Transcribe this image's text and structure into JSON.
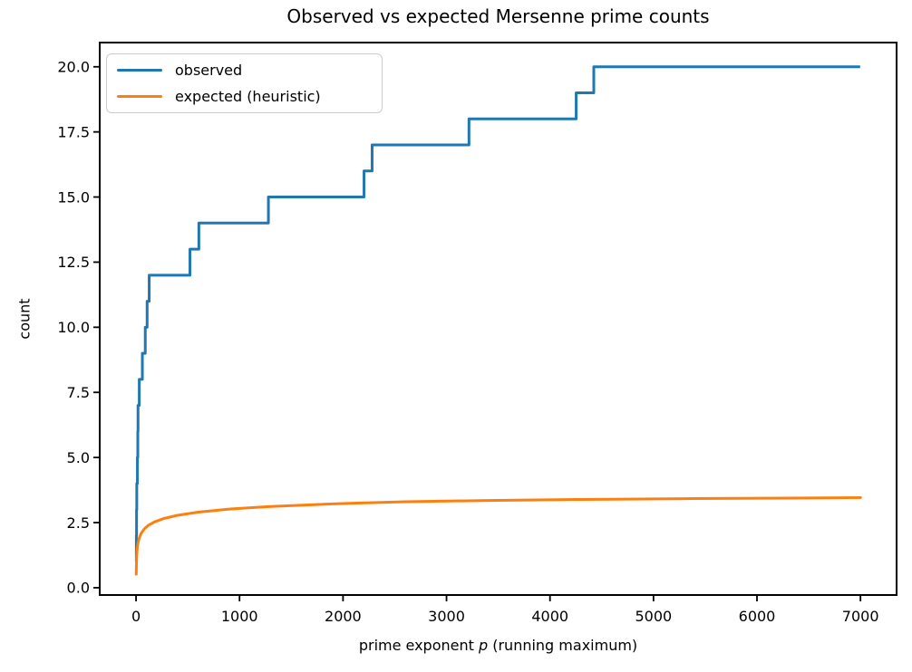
{
  "figure": {
    "title": "Observed vs expected Mersenne prime counts",
    "xlabel_prefix": "prime exponent ",
    "xlabel_italic": "p",
    "xlabel_suffix": " (running maximum)",
    "ylabel": "count"
  },
  "legend": {
    "items": [
      {
        "label": "observed",
        "color": "#1f77b4"
      },
      {
        "label": "expected (heuristic)",
        "color": "#ff7f0e"
      }
    ],
    "position": "upper left"
  },
  "chart_data": {
    "type": "line",
    "title": "Observed vs expected Mersenne prime counts",
    "xlabel": "prime exponent p (running maximum)",
    "ylabel": "count",
    "xlim": [
      -351,
      7349
    ],
    "ylim": [
      -0.28,
      20.93
    ],
    "grid": false,
    "legend_position": "upper left",
    "x_ticks": {
      "values": [
        0,
        1000,
        2000,
        3000,
        4000,
        5000,
        6000,
        7000
      ],
      "labels": [
        "0",
        "1000",
        "2000",
        "3000",
        "4000",
        "5000",
        "6000",
        "7000"
      ]
    },
    "y_ticks": {
      "values": [
        0,
        2.5,
        5,
        7.5,
        10,
        12.5,
        15,
        17.5,
        20
      ],
      "labels": [
        "0.0",
        "2.5",
        "5.0",
        "7.5",
        "10.0",
        "12.5",
        "15.0",
        "17.5",
        "20.0"
      ]
    },
    "series": [
      {
        "name": "observed",
        "style": "step",
        "color": "#1f77b4",
        "linewidth": 3,
        "step_x": [
          2,
          3,
          5,
          7,
          13,
          17,
          19,
          31,
          61,
          89,
          107,
          127,
          521,
          607,
          1279,
          2203,
          2281,
          3217,
          4253,
          4423
        ],
        "step_y": [
          1,
          2,
          3,
          4,
          5,
          6,
          7,
          8,
          9,
          10,
          11,
          12,
          13,
          14,
          15,
          16,
          17,
          18,
          19,
          20
        ],
        "extend_to_x": 6997
      },
      {
        "name": "expected (heuristic)",
        "style": "line",
        "color": "#ff7f0e",
        "linewidth": 3,
        "x": [
          2,
          3,
          4,
          6,
          9,
          13,
          20,
          30,
          50,
          80,
          120,
          180,
          270,
          400,
          600,
          900,
          1300,
          1900,
          2600,
          3400,
          4300,
          5300,
          6300,
          7000
        ],
        "y": [
          0.52,
          0.78,
          0.95,
          1.18,
          1.4,
          1.57,
          1.74,
          1.9,
          2.09,
          2.26,
          2.4,
          2.53,
          2.66,
          2.78,
          2.9,
          3.02,
          3.12,
          3.22,
          3.3,
          3.35,
          3.39,
          3.42,
          3.44,
          3.46
        ]
      }
    ]
  }
}
